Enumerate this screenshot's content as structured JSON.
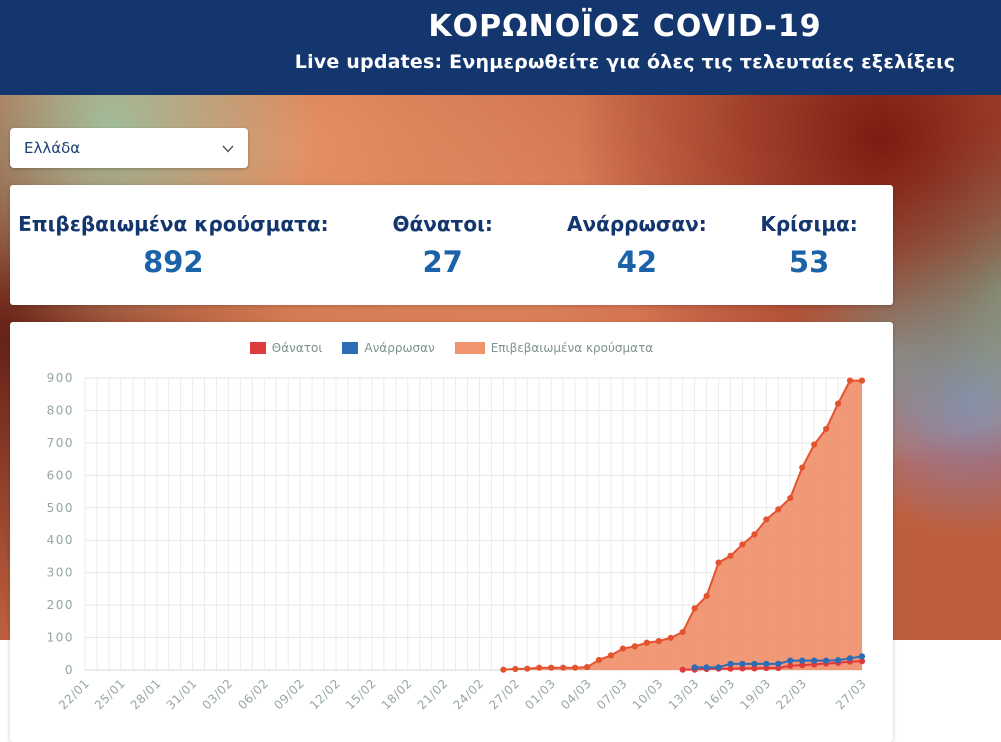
{
  "header": {
    "title": "ΚΟΡΩΝΟΪΟΣ COVID-19",
    "subtitle": "Live updates: Ενημερωθείτε για όλες τις τελευταίες εξελίξεις"
  },
  "country_select": {
    "value": "Ελλάδα"
  },
  "stats": [
    {
      "label": "Επιβεβαιωμένα κρούσματα:",
      "value": "892"
    },
    {
      "label": "Θάνατοι:",
      "value": "27"
    },
    {
      "label": "Ανάρρωσαν:",
      "value": "42"
    },
    {
      "label": "Κρίσιμα:",
      "value": "53"
    }
  ],
  "colors": {
    "header_bg": "#14366e",
    "stat_label": "#14366e",
    "stat_value": "#1b62a8",
    "deaths": "#e03b3b",
    "recovered": "#2e6cb5",
    "confirmed_fill": "#f09470",
    "confirmed_line": "#e4532f",
    "grid": "#ececec",
    "axis_text": "#97a6a6"
  },
  "chart_data": {
    "type": "area",
    "title": "",
    "legend_position": "top",
    "grid": true,
    "ylim": [
      0,
      900
    ],
    "y_tick_step": 100,
    "legend": [
      {
        "label": "Θάνατοι",
        "color": "#e03b3b"
      },
      {
        "label": "Ανάρρωσαν",
        "color": "#2e6cb5"
      },
      {
        "label": "Επιβεβαιωμένα κρούσματα",
        "color": "#f09470"
      }
    ],
    "dates": [
      "22/01",
      "23/01",
      "24/01",
      "25/01",
      "26/01",
      "27/01",
      "28/01",
      "29/01",
      "30/01",
      "31/01",
      "01/02",
      "02/02",
      "03/02",
      "04/02",
      "05/02",
      "06/02",
      "07/02",
      "08/02",
      "09/02",
      "10/02",
      "11/02",
      "12/02",
      "13/02",
      "14/02",
      "15/02",
      "16/02",
      "17/02",
      "18/02",
      "19/02",
      "20/02",
      "21/02",
      "22/02",
      "23/02",
      "24/02",
      "25/02",
      "26/02",
      "27/02",
      "28/02",
      "29/02",
      "01/03",
      "02/03",
      "03/03",
      "04/03",
      "05/03",
      "06/03",
      "07/03",
      "08/03",
      "09/03",
      "10/03",
      "11/03",
      "12/03",
      "13/03",
      "14/03",
      "15/03",
      "16/03",
      "17/03",
      "18/03",
      "19/03",
      "20/03",
      "21/03",
      "22/03",
      "23/03",
      "24/03",
      "25/03",
      "26/03",
      "27/03"
    ],
    "series": [
      {
        "name": "Επιβεβαιωμένα κρούσματα",
        "color": "#f09470",
        "line_color": "#e4532f",
        "fill": true,
        "start": "26/02",
        "values": [
          1,
          3,
          4,
          7,
          7,
          7,
          7,
          9,
          31,
          45,
          66,
          73,
          84,
          89,
          99,
          117,
          190,
          228,
          331,
          352,
          387,
          418,
          464,
          495,
          530,
          624,
          695,
          743,
          821,
          892,
          892
        ]
      },
      {
        "name": "Θάνατοι",
        "color": "#e03b3b",
        "line_color": "#e03b3b",
        "fill": false,
        "start": "12/03",
        "values": [
          1,
          1,
          3,
          4,
          4,
          5,
          5,
          6,
          6,
          13,
          15,
          17,
          20,
          22,
          26,
          27
        ]
      },
      {
        "name": "Ανάρρωσαν",
        "color": "#2e6cb5",
        "line_color": "#2e6cb5",
        "fill": false,
        "start": "13/03",
        "values": [
          8,
          8,
          8,
          19,
          19,
          19,
          19,
          19,
          29,
          29,
          29,
          29,
          30,
          36,
          42
        ]
      }
    ]
  }
}
